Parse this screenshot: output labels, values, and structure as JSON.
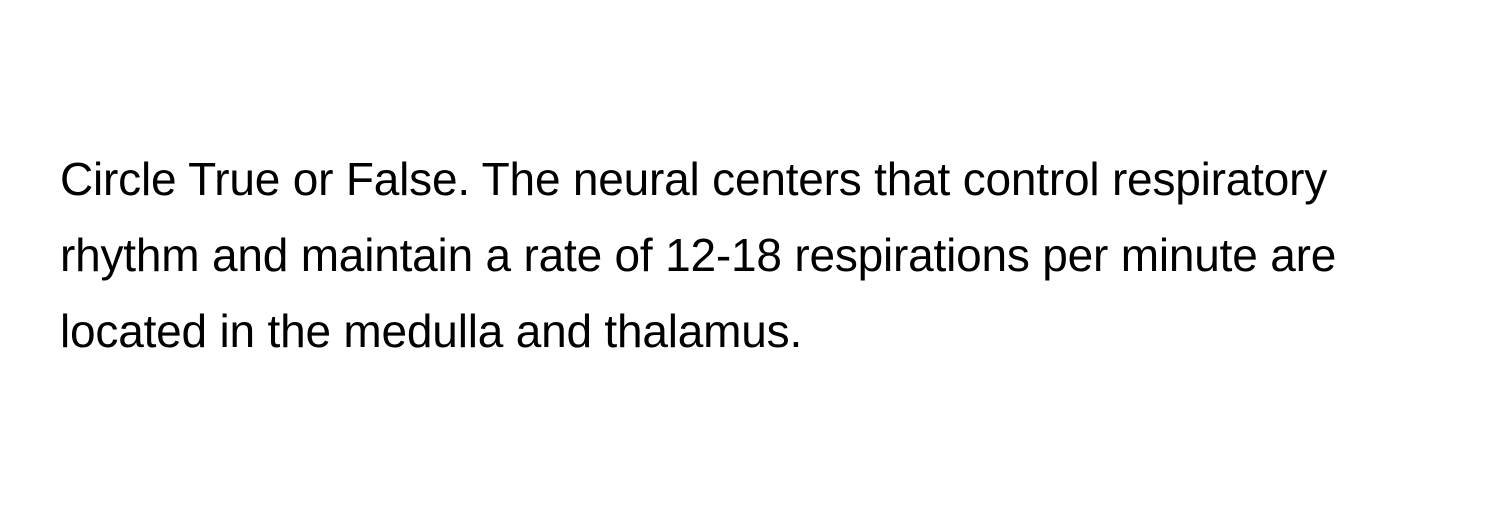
{
  "question": {
    "text": "Circle True or False. The neural centers that control respiratory rhythm and maintain a rate of 12-18 respirations per minute are located in the medulla and thalamus.",
    "font_size": 46,
    "line_height": 1.65,
    "text_color": "#000000",
    "background_color": "#ffffff"
  }
}
